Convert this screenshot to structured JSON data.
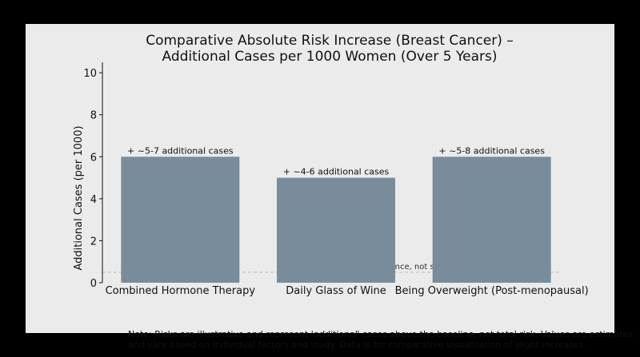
{
  "chart_data": {
    "type": "bar",
    "title_lines": [
      "Comparative Absolute Risk Increase (Breast Cancer) –",
      "Additional Cases per 1000 Women (Over 5 Years)"
    ],
    "ylabel": "Additional Cases (per 1000)",
    "xlabel": "",
    "ylim": [
      0,
      10.5
    ],
    "yticks": [
      0,
      2,
      4,
      6,
      8,
      10
    ],
    "categories": [
      "Combined Hormone Therapy",
      "Daily Glass of Wine",
      "Being Overweight (Post-menopausal)"
    ],
    "values": [
      6,
      5,
      6
    ],
    "data_labels": [
      "+ ~5-7 additional cases",
      "+ ~4-6 additional cases",
      "+ ~5-8 additional cases"
    ],
    "reference_line": {
      "value": 0.5,
      "label": "Approx. Baseline Risk (Reference, not shown)"
    },
    "grid": false,
    "colors": {
      "bar": "#788c9c",
      "panel": "#ebebeb",
      "background": "#000000",
      "reference_line": "#bbbbbb"
    }
  },
  "note": {
    "prefix": "Note: Risks are illustrative and represent '",
    "emphasis": "additional",
    "suffix": "' cases above the baseline, not total risk. Values are estimates and vary based on individual factors and study. Data is for comparative visualization of slight increases."
  }
}
